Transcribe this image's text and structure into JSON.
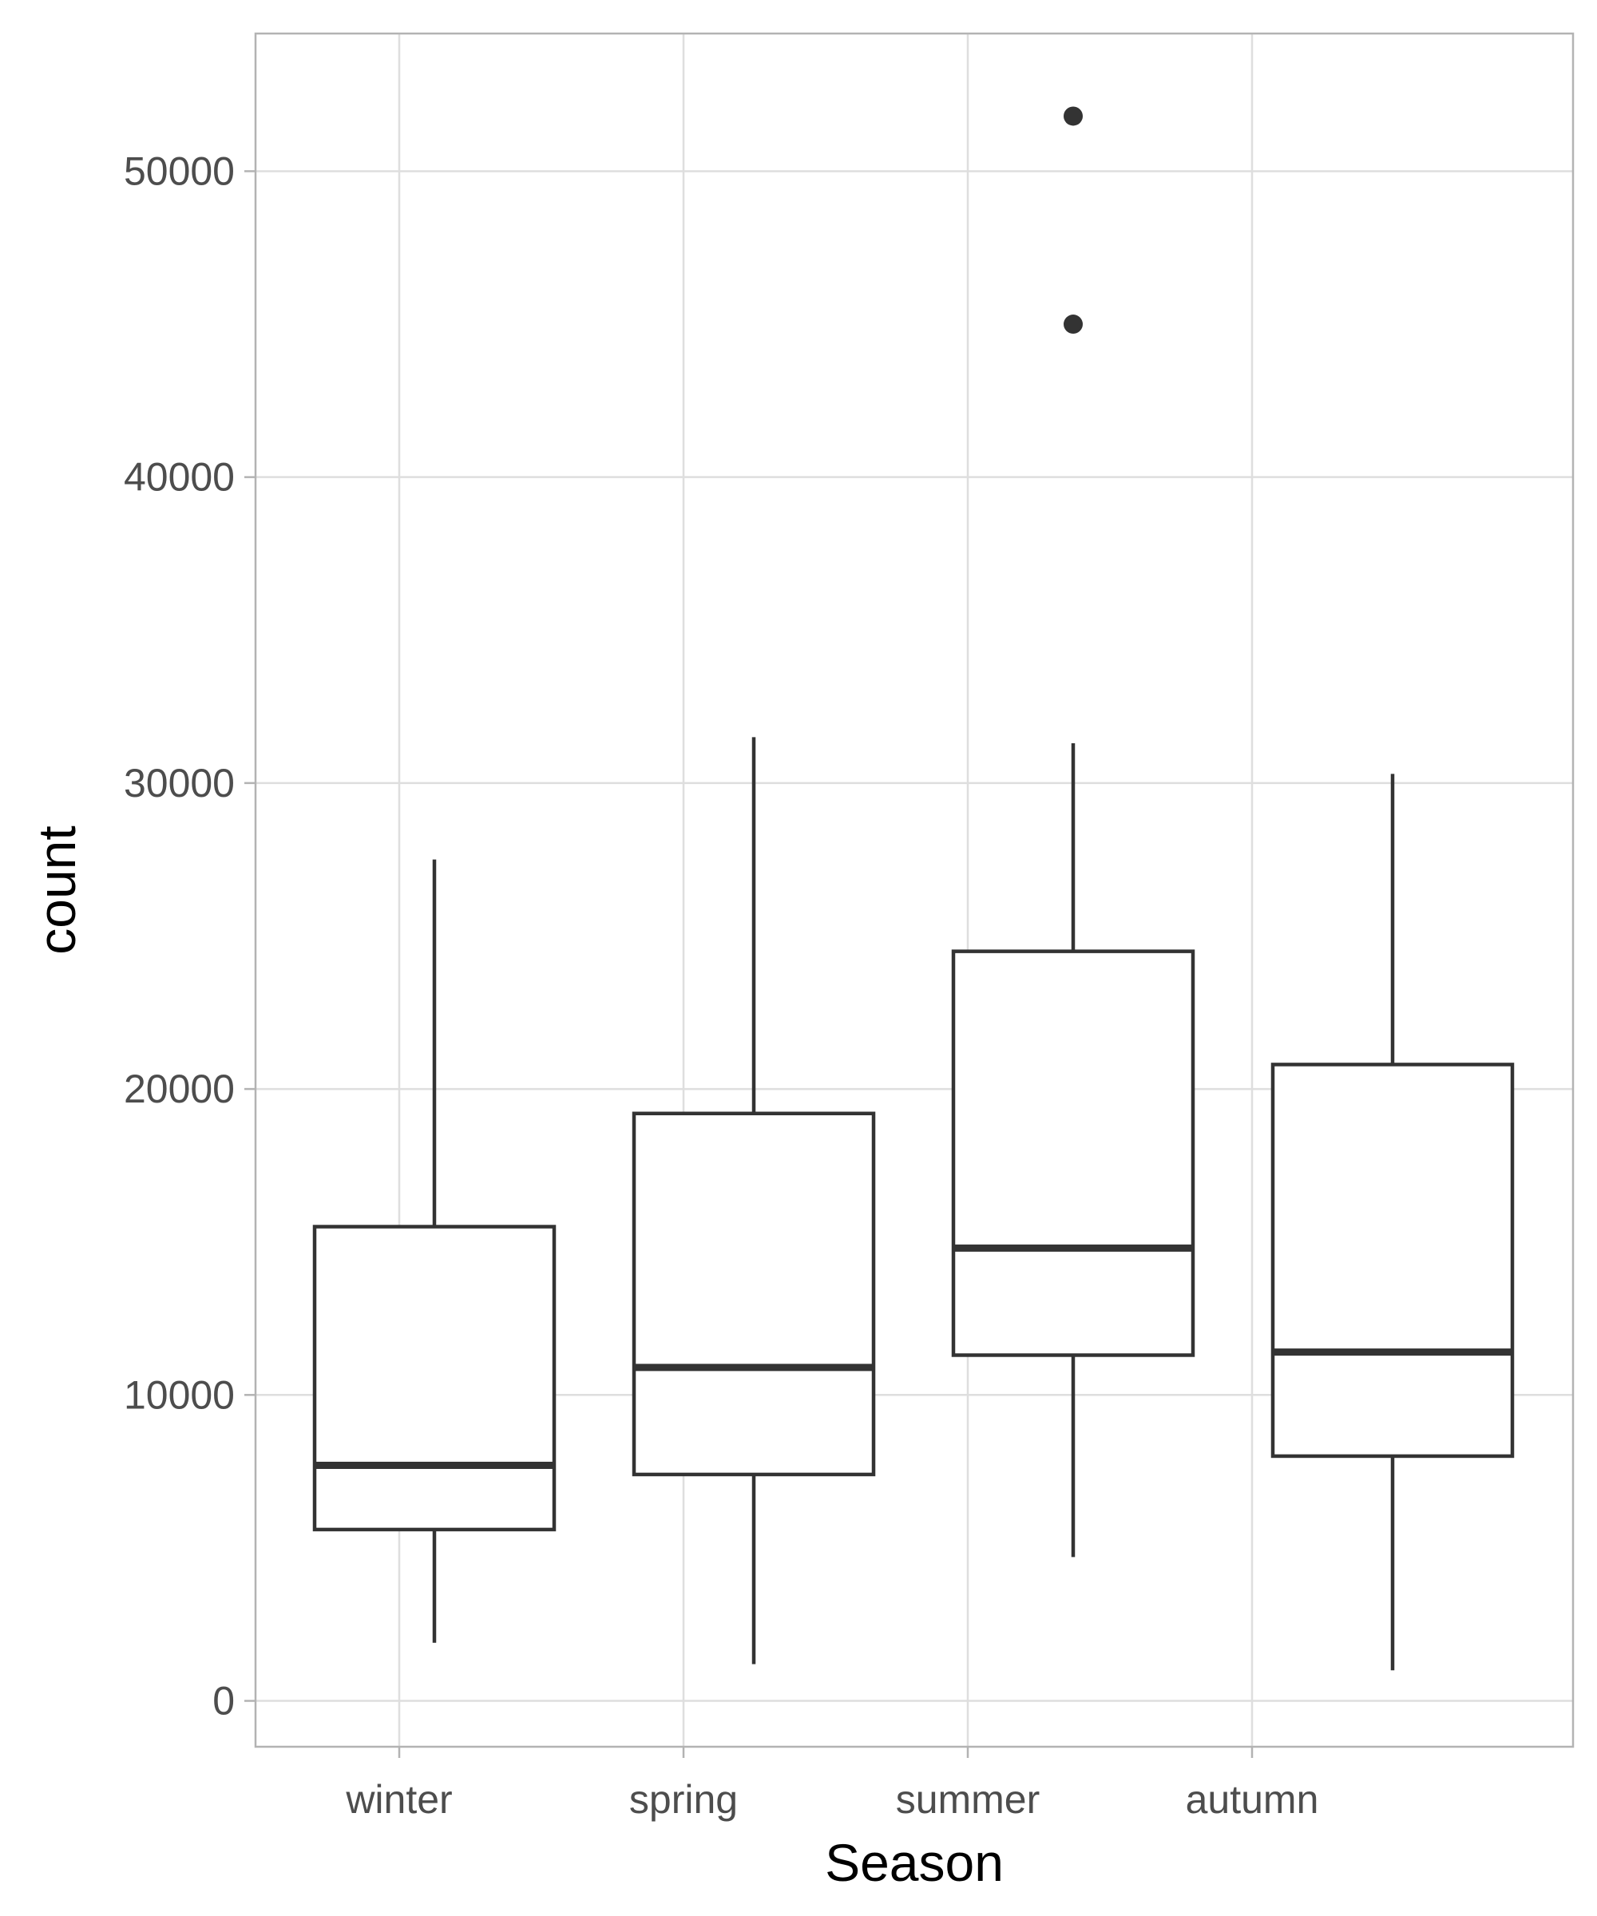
{
  "chart_data": {
    "type": "boxplot",
    "xlabel": "Season",
    "ylabel": "count",
    "categories": [
      "winter",
      "spring",
      "summer",
      "autumn"
    ],
    "ylim": [
      -1500,
      54500
    ],
    "y_ticks": [
      0,
      10000,
      20000,
      30000,
      40000,
      50000
    ],
    "grid": true,
    "legend": "none",
    "boxes": [
      {
        "category": "winter",
        "whisker_low": 1900,
        "q1": 5600,
        "median": 7700,
        "q3": 15500,
        "whisker_high": 27500,
        "outliers": []
      },
      {
        "category": "spring",
        "whisker_low": 1200,
        "q1": 7400,
        "median": 10900,
        "q3": 19200,
        "whisker_high": 31500,
        "outliers": []
      },
      {
        "category": "summer",
        "whisker_low": 4700,
        "q1": 11300,
        "median": 14800,
        "q3": 24500,
        "whisker_high": 31300,
        "outliers": [
          45000,
          51800
        ]
      },
      {
        "category": "autumn",
        "whisker_low": 1000,
        "q1": 8000,
        "median": 11400,
        "q3": 20800,
        "whisker_high": 30300,
        "outliers": []
      }
    ],
    "colors": {
      "box_stroke": "#333333",
      "box_fill": "#ffffff",
      "grid": "#dedede",
      "panel_border": "#b3b3b3",
      "tick_text": "#4d4d4d",
      "title_text": "#000000"
    }
  }
}
